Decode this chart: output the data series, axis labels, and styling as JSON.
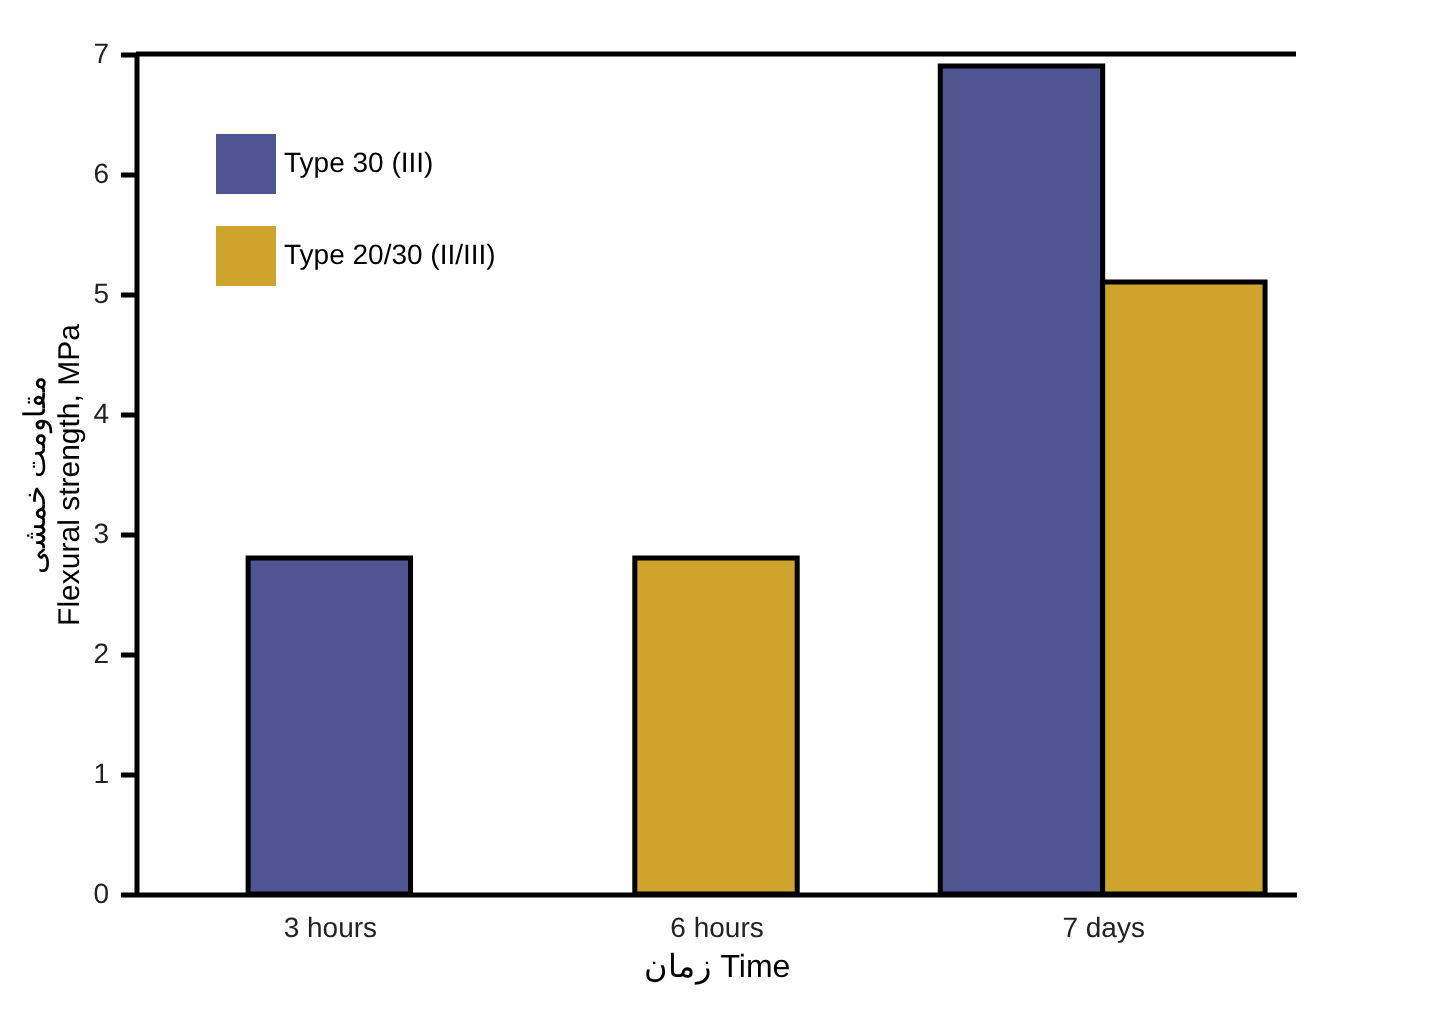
{
  "chart_data": {
    "type": "bar",
    "xlabel": "زمان  Time",
    "ylabel": "مقاومت خمشی\nFlexural strength, MPa",
    "categories": [
      "3 hours",
      "6 hours",
      "7 days"
    ],
    "series": [
      {
        "name": "Type 30 (III)",
        "color": "#4e5590",
        "values": [
          2.8,
          null,
          6.9
        ]
      },
      {
        "name": "Type 20/30 (II/III)",
        "color": "#cfa42c",
        "values": [
          null,
          2.8,
          5.1
        ]
      }
    ],
    "ylim": [
      0,
      7
    ],
    "yticks": [
      0,
      1,
      2,
      3,
      4,
      5,
      6,
      7
    ],
    "grid": false,
    "legend": "top left"
  }
}
